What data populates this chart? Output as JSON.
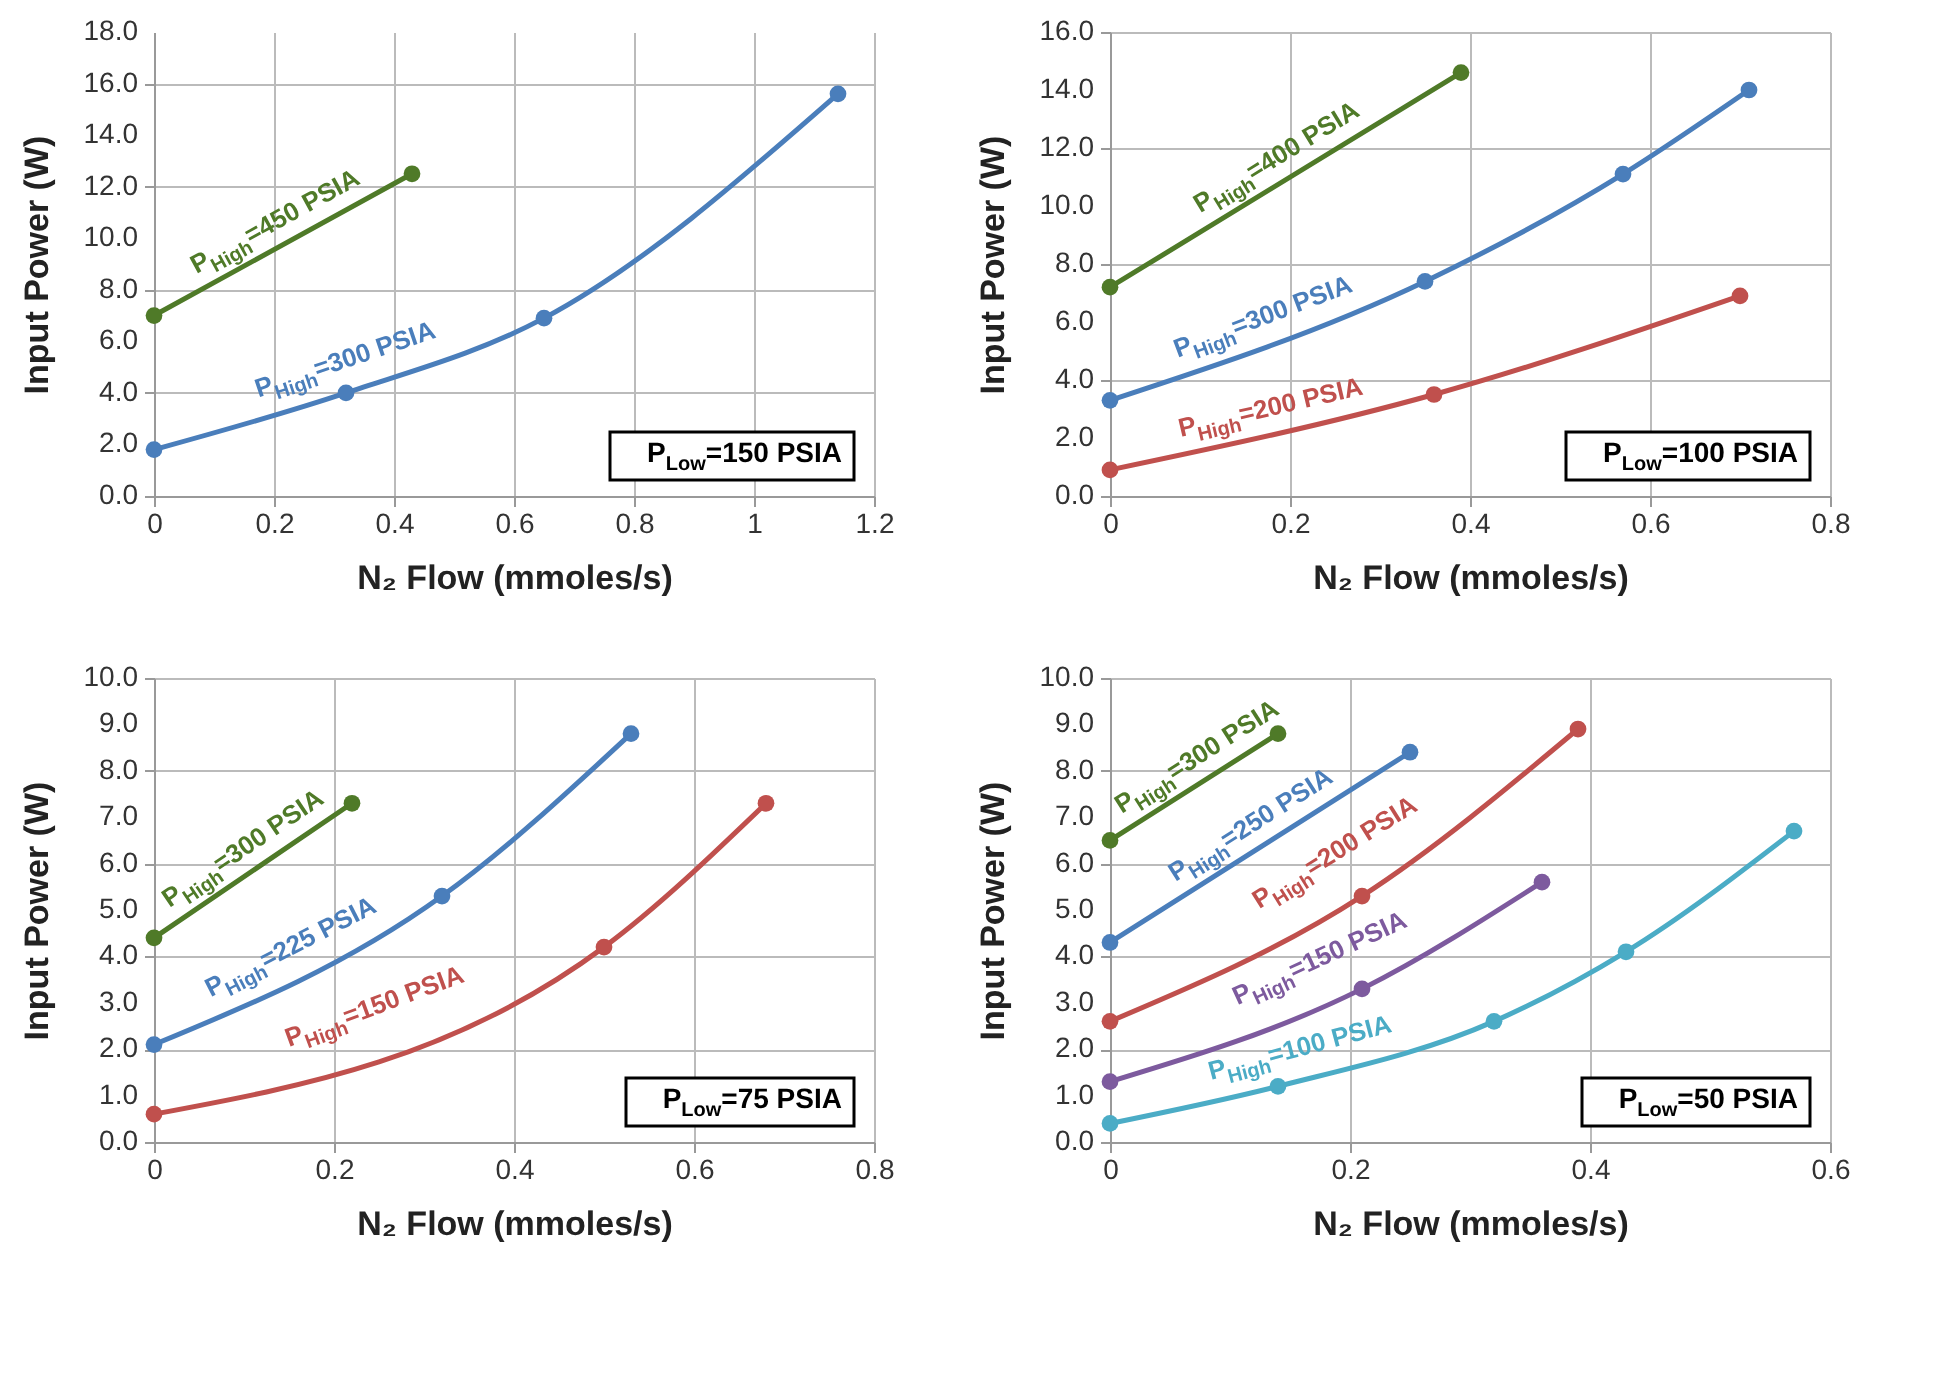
{
  "chart_data": [
    {
      "type": "line",
      "xlabel": "N₂ Flow (mmoles/s)",
      "ylabel": "Input Power (W)",
      "xlim": [
        0,
        1.2
      ],
      "xticks": [
        0,
        0.2,
        0.4,
        0.6,
        0.8,
        1,
        1.2
      ],
      "ylim": [
        0,
        18
      ],
      "yticks": [
        {
          "value": 0,
          "label": "0.0"
        },
        {
          "value": 2,
          "label": "2.0"
        },
        {
          "value": 4,
          "label": "4.0"
        },
        {
          "value": 6,
          "label": "6.0"
        },
        {
          "value": 8,
          "label": "8.0"
        },
        {
          "value": 10,
          "label": "10.0"
        },
        {
          "value": 12,
          "label": "12.0"
        },
        {
          "value": 14,
          "label": "14.0"
        },
        {
          "value": 16,
          "label": "16.0"
        },
        {
          "value": 18,
          "label": "18.0"
        }
      ],
      "grid": true,
      "legend": false,
      "marker": "circle",
      "line_style": "solid",
      "annotations": [
        "P$_{Low}$=150 PSIA"
      ],
      "series": [
        {
          "name": "P$_{High}$=450 PSIA",
          "color": "#4f7a28",
          "x": [
            0,
            0.43
          ],
          "values": [
            7.0,
            12.5
          ]
        },
        {
          "name": "P$_{High}$=300 PSIA",
          "color": "#4a7ebb",
          "x": [
            0,
            0.32,
            0.65,
            1.14
          ],
          "values": [
            1.8,
            4.0,
            6.9,
            15.6
          ]
        }
      ]
    },
    {
      "type": "line",
      "xlabel": "N₂ Flow (mmoles/s)",
      "ylabel": "Input Power (W)",
      "xlim": [
        0,
        0.8
      ],
      "xticks": [
        0,
        0.2,
        0.4,
        0.6,
        0.8
      ],
      "ylim": [
        0,
        16
      ],
      "yticks": [
        {
          "value": 0,
          "label": "0.0"
        },
        {
          "value": 2,
          "label": "2.0"
        },
        {
          "value": 4,
          "label": "4.0"
        },
        {
          "value": 6,
          "label": "6.0"
        },
        {
          "value": 8,
          "label": "8.0"
        },
        {
          "value": 10,
          "label": "10.0"
        },
        {
          "value": 12,
          "label": "12.0"
        },
        {
          "value": 14,
          "label": "14.0"
        },
        {
          "value": 16,
          "label": "16.0"
        }
      ],
      "grid": true,
      "legend": false,
      "marker": "circle",
      "line_style": "solid",
      "annotations": [
        "P$_{Low}$=100 PSIA"
      ],
      "series": [
        {
          "name": "P$_{High}$=400 PSIA",
          "color": "#4f7a28",
          "x": [
            0,
            0.39
          ],
          "values": [
            7.2,
            14.6
          ]
        },
        {
          "name": "P$_{High}$=300 PSIA",
          "color": "#4a7ebb",
          "x": [
            0,
            0.35,
            0.57,
            0.71
          ],
          "values": [
            3.3,
            7.4,
            11.1,
            14.0
          ]
        },
        {
          "name": "P$_{High}$=200 PSIA",
          "color": "#c0504d",
          "x": [
            0,
            0.36,
            0.7
          ],
          "values": [
            0.9,
            3.5,
            6.9
          ]
        }
      ]
    },
    {
      "type": "line",
      "xlabel": "N₂ Flow (mmoles/s)",
      "ylabel": "Input Power (W)",
      "xlim": [
        0,
        0.8
      ],
      "xticks": [
        0,
        0.2,
        0.4,
        0.6,
        0.8
      ],
      "ylim": [
        0,
        10
      ],
      "yticks": [
        {
          "value": 0,
          "label": "0.0"
        },
        {
          "value": 1,
          "label": "1.0"
        },
        {
          "value": 2,
          "label": "2.0"
        },
        {
          "value": 3,
          "label": "3.0"
        },
        {
          "value": 4,
          "label": "4.0"
        },
        {
          "value": 5,
          "label": "5.0"
        },
        {
          "value": 6,
          "label": "6.0"
        },
        {
          "value": 7,
          "label": "7.0"
        },
        {
          "value": 8,
          "label": "8.0"
        },
        {
          "value": 9,
          "label": "9.0"
        },
        {
          "value": 10,
          "label": "10.0"
        }
      ],
      "grid": true,
      "legend": false,
      "marker": "circle",
      "line_style": "solid",
      "annotations": [
        "P$_{Low}$=75 PSIA"
      ],
      "series": [
        {
          "name": "P$_{High}$=300 PSIA",
          "color": "#4f7a28",
          "x": [
            0,
            0.22
          ],
          "values": [
            4.4,
            7.3
          ]
        },
        {
          "name": "P$_{High}$=225 PSIA",
          "color": "#4a7ebb",
          "x": [
            0,
            0.32,
            0.53
          ],
          "values": [
            2.1,
            5.3,
            8.8
          ]
        },
        {
          "name": "P$_{High}$=150 PSIA",
          "color": "#c0504d",
          "x": [
            0,
            0.5,
            0.68
          ],
          "values": [
            0.6,
            4.2,
            7.3
          ]
        }
      ]
    },
    {
      "type": "line",
      "xlabel": "N₂ Flow (mmoles/s)",
      "ylabel": "Input Power (W)",
      "xlim": [
        0,
        0.6
      ],
      "xticks": [
        0,
        0.2,
        0.4,
        0.6
      ],
      "ylim": [
        0,
        10
      ],
      "yticks": [
        {
          "value": 0,
          "label": "0.0"
        },
        {
          "value": 1,
          "label": "1.0"
        },
        {
          "value": 2,
          "label": "2.0"
        },
        {
          "value": 3,
          "label": "3.0"
        },
        {
          "value": 4,
          "label": "4.0"
        },
        {
          "value": 5,
          "label": "5.0"
        },
        {
          "value": 6,
          "label": "6.0"
        },
        {
          "value": 7,
          "label": "7.0"
        },
        {
          "value": 8,
          "label": "8.0"
        },
        {
          "value": 9,
          "label": "9.0"
        },
        {
          "value": 10,
          "label": "10.0"
        }
      ],
      "grid": true,
      "legend": false,
      "marker": "circle",
      "line_style": "solid",
      "annotations": [
        "P$_{Low}$=50 PSIA"
      ],
      "series": [
        {
          "name": "P$_{High}$=300 PSIA",
          "color": "#4f7a28",
          "x": [
            0,
            0.14
          ],
          "values": [
            6.5,
            8.8
          ]
        },
        {
          "name": "P$_{High}$=250 PSIA",
          "color": "#4a7ebb",
          "x": [
            0,
            0.25
          ],
          "values": [
            4.3,
            8.4
          ]
        },
        {
          "name": "P$_{High}$=200 PSIA",
          "color": "#c0504d",
          "x": [
            0,
            0.21,
            0.39
          ],
          "values": [
            2.6,
            5.3,
            8.9
          ]
        },
        {
          "name": "P$_{High}$=150 PSIA",
          "color": "#7d5a9e",
          "x": [
            0,
            0.21,
            0.36
          ],
          "values": [
            1.3,
            3.3,
            5.6
          ]
        },
        {
          "name": "P$_{High}$=100 PSIA",
          "color": "#4bacc6",
          "x": [
            0,
            0.14,
            0.32,
            0.43,
            0.57
          ],
          "values": [
            0.4,
            1.2,
            2.6,
            4.1,
            6.7
          ]
        }
      ]
    }
  ]
}
